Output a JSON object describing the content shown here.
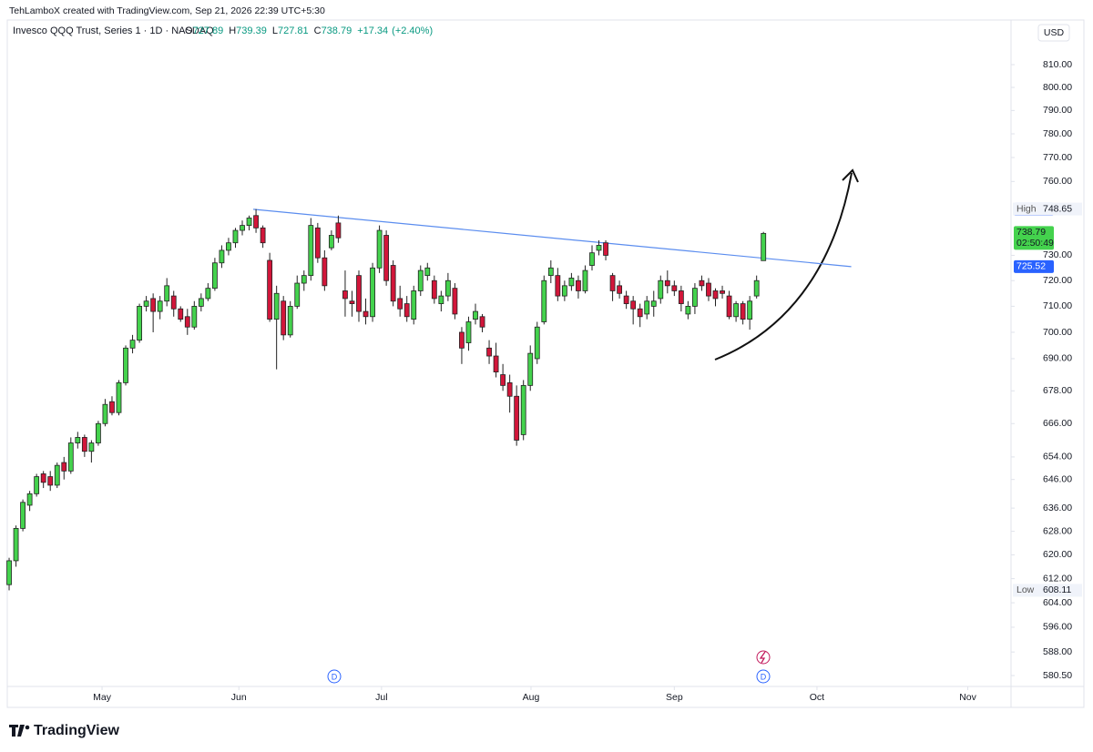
{
  "header": {
    "attribution": "TehLamboX created with TradingView.com, Sep 21, 2026 22:39 UTC+5:30",
    "logo": "TradingView"
  },
  "chart_data": {
    "type": "candlestick",
    "title": "Invesco QQQ Trust, Series 1 · 1D · NASDAQ",
    "ohlc_prefixes": [
      "O",
      "H",
      "L",
      "C"
    ],
    "change": {
      "value": 17.34,
      "label": "+17.34"
    },
    "change_pct": {
      "value": 2.4,
      "label": "(+2.40%)"
    },
    "currency": "USD",
    "high_label": "High",
    "low_label": "Low",
    "countdown": "02:50:49",
    "up_color": "#44d24d",
    "down_color": "#d2163a",
    "log_scale": true,
    "grid": false,
    "ylim": [
      576.2,
      819.3
    ],
    "yticks": [
      {
        "value": 810,
        "label": "810.00"
      },
      {
        "value": 800,
        "label": "800.00"
      },
      {
        "value": 790,
        "label": "790.00"
      },
      {
        "value": 780,
        "label": "780.00"
      },
      {
        "value": 770,
        "label": "770.00"
      },
      {
        "value": 760,
        "label": "760.00"
      },
      {
        "value": 730,
        "label": "730.00"
      },
      {
        "value": 720,
        "label": "720.00"
      },
      {
        "value": 710,
        "label": "710.00"
      },
      {
        "value": 700,
        "label": "700.00"
      },
      {
        "value": 690,
        "label": "690.00"
      },
      {
        "value": 678,
        "label": "678.00"
      },
      {
        "value": 666,
        "label": "666.00"
      },
      {
        "value": 654,
        "label": "654.00"
      },
      {
        "value": 646,
        "label": "646.00"
      },
      {
        "value": 636,
        "label": "636.00"
      },
      {
        "value": 628,
        "label": "628.00"
      },
      {
        "value": 620,
        "label": "620.00"
      },
      {
        "value": 612,
        "label": "612.00"
      },
      {
        "value": 604,
        "label": "604.00"
      },
      {
        "value": 596,
        "label": "596.00"
      },
      {
        "value": 588,
        "label": "588.00"
      },
      {
        "value": 580.5,
        "label": "580.50"
      }
    ],
    "xlim": [
      -0.27,
      146.1
    ],
    "xticks": [
      {
        "value": 13.55,
        "label": "May"
      },
      {
        "value": 33.5,
        "label": "Jun"
      },
      {
        "value": 54.3,
        "label": "Jul"
      },
      {
        "value": 76.1,
        "label": "Aug"
      },
      {
        "value": 97.0,
        "label": "Sep"
      },
      {
        "value": 117.8,
        "label": "Oct"
      },
      {
        "value": 139.8,
        "label": "Nov"
      }
    ],
    "trendline": {
      "color": "#5b8def",
      "x": [
        35.6,
        122.8
      ],
      "values": [
        748.56,
        725.52
      ]
    },
    "event_markers": [
      "D",
      "D"
    ],
    "candles": [
      [
        610,
        619,
        608.11,
        618
      ],
      [
        618,
        630,
        616,
        629
      ],
      [
        629,
        639,
        628,
        638
      ],
      [
        637,
        642,
        635,
        641
      ],
      [
        641,
        648,
        640,
        647
      ],
      [
        648,
        649,
        643,
        645
      ],
      [
        647,
        649,
        642,
        644
      ],
      [
        644,
        652,
        643,
        651
      ],
      [
        652,
        654,
        646,
        649
      ],
      [
        649,
        661,
        648,
        659
      ],
      [
        659,
        663,
        657,
        661
      ],
      [
        661,
        662,
        654,
        656
      ],
      [
        656,
        660,
        652,
        659
      ],
      [
        659,
        667,
        658,
        666
      ],
      [
        666,
        675,
        665,
        673
      ],
      [
        674,
        676,
        669,
        670
      ],
      [
        670,
        682,
        669,
        681
      ],
      [
        681,
        695,
        680,
        694
      ],
      [
        694,
        699,
        692,
        697
      ],
      [
        697,
        711,
        696,
        710
      ],
      [
        710,
        714,
        708,
        712
      ],
      [
        713,
        715,
        700,
        708
      ],
      [
        708,
        714,
        705,
        712
      ],
      [
        712,
        721,
        710,
        718
      ],
      [
        714,
        716,
        706,
        709
      ],
      [
        709,
        710,
        704,
        705
      ],
      [
        706,
        709,
        699,
        702
      ],
      [
        702,
        712,
        701,
        710
      ],
      [
        710,
        715,
        708,
        713
      ],
      [
        713,
        719,
        712,
        717
      ],
      [
        717,
        729,
        716,
        727
      ],
      [
        727,
        734,
        725,
        732
      ],
      [
        732,
        737,
        730,
        735
      ],
      [
        735,
        741,
        733,
        740
      ],
      [
        740,
        744,
        738,
        742
      ],
      [
        742,
        746,
        740,
        745
      ],
      [
        746,
        748.65,
        739,
        741
      ],
      [
        741,
        742,
        733,
        735
      ],
      [
        728,
        731,
        704,
        705
      ],
      [
        705,
        718,
        686,
        715
      ],
      [
        712,
        714,
        697,
        699
      ],
      [
        699,
        712,
        698,
        710
      ],
      [
        710,
        722,
        709,
        719
      ],
      [
        719,
        724,
        716,
        722
      ],
      [
        722,
        745,
        720,
        742
      ],
      [
        741,
        743,
        727,
        729
      ],
      [
        729,
        732,
        716,
        718
      ],
      [
        733,
        740,
        732,
        738
      ],
      [
        743,
        746,
        735,
        737
      ],
      [
        716,
        724,
        706,
        713
      ],
      [
        712,
        716,
        706,
        711
      ],
      [
        722,
        724,
        704,
        708
      ],
      [
        708,
        713,
        703,
        706
      ],
      [
        706,
        727,
        704,
        725
      ],
      [
        725,
        742,
        723,
        740
      ],
      [
        738,
        740,
        718,
        720
      ],
      [
        726,
        728,
        710,
        712
      ],
      [
        713,
        718,
        706,
        709
      ],
      [
        711,
        714,
        704,
        706
      ],
      [
        705,
        718,
        703,
        716
      ],
      [
        716,
        726,
        714,
        724
      ],
      [
        722,
        727,
        720,
        725
      ],
      [
        720,
        722,
        711,
        713
      ],
      [
        711,
        716,
        708,
        714
      ],
      [
        714,
        723,
        712,
        720
      ],
      [
        717,
        719,
        705,
        707
      ],
      [
        700,
        702,
        688,
        694
      ],
      [
        696,
        706,
        693,
        704
      ],
      [
        705,
        711,
        703,
        708
      ],
      [
        706,
        707,
        700,
        702
      ],
      [
        694,
        697,
        688,
        691
      ],
      [
        691,
        696,
        683,
        685
      ],
      [
        684,
        688,
        678,
        680
      ],
      [
        681,
        684,
        670,
        676
      ],
      [
        676,
        680,
        658,
        660
      ],
      [
        662,
        682,
        660,
        680
      ],
      [
        680,
        695,
        678,
        692
      ],
      [
        690,
        704,
        688,
        702
      ],
      [
        704,
        722,
        703,
        720
      ],
      [
        722,
        728,
        719,
        725
      ],
      [
        722,
        725,
        712,
        714
      ],
      [
        714,
        720,
        712,
        718
      ],
      [
        718,
        723,
        716,
        721
      ],
      [
        720,
        722,
        713,
        716
      ],
      [
        716,
        726,
        715,
        724
      ],
      [
        726,
        734,
        724,
        731
      ],
      [
        732,
        736,
        730,
        734
      ],
      [
        735,
        736,
        728,
        730
      ],
      [
        722,
        723,
        712,
        716
      ],
      [
        718,
        720,
        713,
        715
      ],
      [
        714,
        716,
        709,
        711
      ],
      [
        712,
        714,
        703,
        709
      ],
      [
        709,
        711,
        702,
        706
      ],
      [
        707,
        714,
        705,
        712
      ],
      [
        710,
        716,
        706,
        712
      ],
      [
        713,
        722,
        711,
        720
      ],
      [
        720,
        724,
        715,
        718
      ],
      [
        718,
        720,
        714,
        716
      ],
      [
        716,
        718,
        708,
        711
      ],
      [
        707,
        712,
        705,
        710
      ],
      [
        710,
        719,
        707,
        717
      ],
      [
        720,
        722,
        716,
        718
      ],
      [
        719,
        721,
        712,
        714
      ],
      [
        716,
        717,
        710,
        713
      ],
      [
        716,
        718,
        713,
        715
      ],
      [
        714,
        716,
        705,
        706
      ],
      [
        706,
        712,
        704,
        711
      ],
      [
        711,
        712,
        703,
        705
      ],
      [
        705,
        714,
        701,
        712
      ],
      [
        714,
        722,
        713,
        720
      ],
      [
        727.89,
        739.39,
        727.81,
        738.79
      ]
    ]
  }
}
